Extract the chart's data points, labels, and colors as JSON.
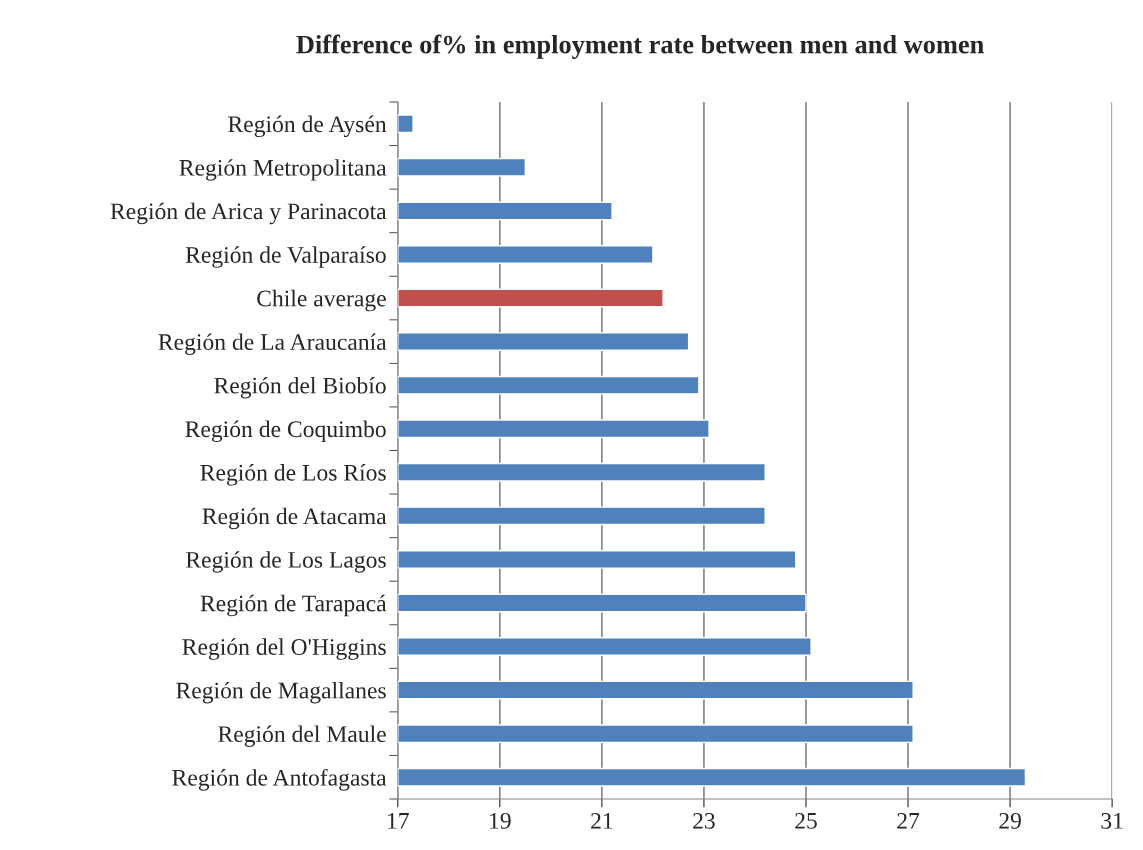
{
  "chart_data": {
    "type": "bar",
    "orientation": "horizontal",
    "title": "Difference of% in employment rate between men and women",
    "categories": [
      "Región de Aysén",
      "Región Metropolitana",
      "Región de Arica y Parinacota",
      "Región de Valparaíso",
      "Chile average",
      "Región de La Araucanía",
      "Región del Biobío",
      "Región de Coquimbo",
      "Región de Los Ríos",
      "Región de Atacama",
      "Región de Los Lagos",
      "Región de Tarapacá",
      "Región del O'Higgins",
      "Región de Magallanes",
      "Región del Maule",
      "Región de Antofagasta"
    ],
    "values": [
      17.3,
      19.5,
      21.2,
      22.0,
      22.2,
      22.7,
      22.9,
      23.1,
      24.2,
      24.2,
      24.8,
      25.0,
      25.1,
      27.1,
      27.1,
      29.3
    ],
    "colors": [
      "#4f81bd",
      "#4f81bd",
      "#4f81bd",
      "#4f81bd",
      "#c0504d",
      "#4f81bd",
      "#4f81bd",
      "#4f81bd",
      "#4f81bd",
      "#4f81bd",
      "#4f81bd",
      "#4f81bd",
      "#4f81bd",
      "#4f81bd",
      "#4f81bd",
      "#4f81bd"
    ],
    "xlim": [
      17,
      31
    ],
    "xticks": [
      17,
      19,
      21,
      23,
      25,
      27,
      29,
      31
    ],
    "grid": "x"
  }
}
